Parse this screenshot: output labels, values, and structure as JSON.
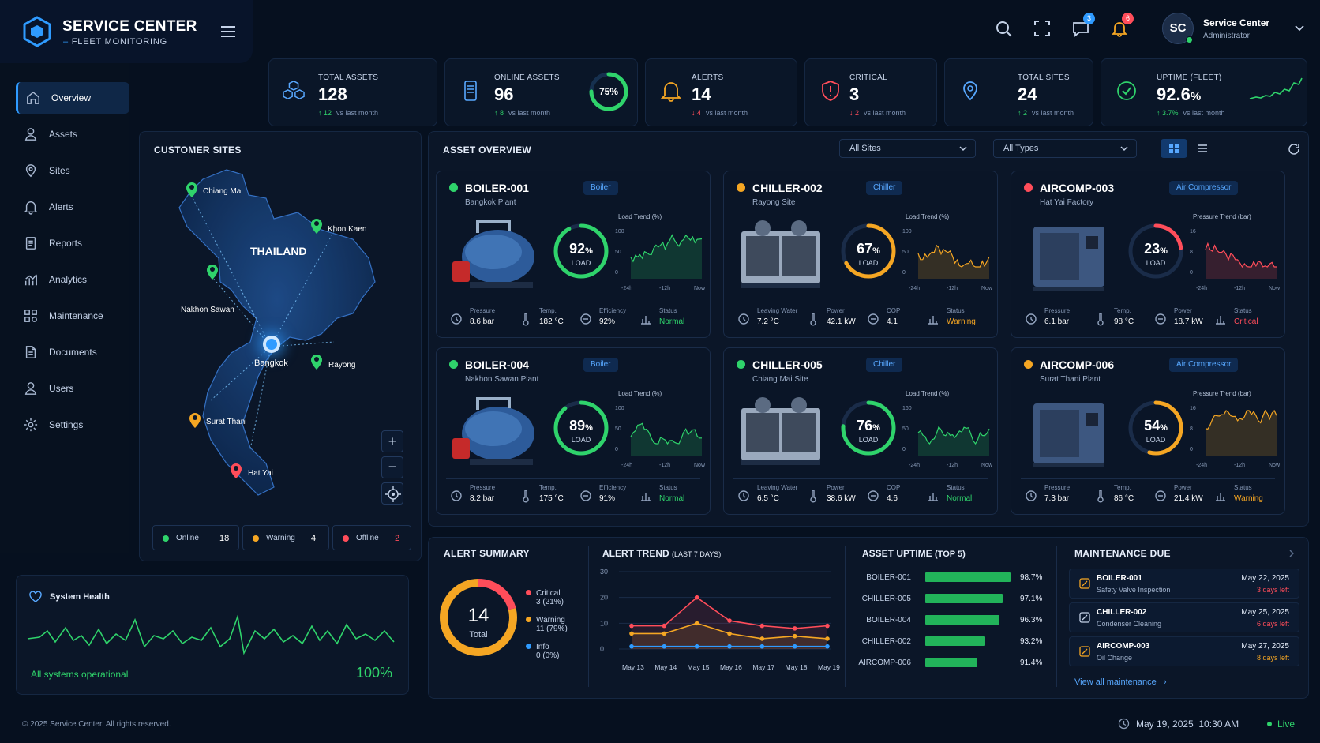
{
  "brand": {
    "title": "SERVICE CENTER",
    "subtitle": "FLEET MONITORING"
  },
  "header": {
    "chat_count": "3",
    "alert_count": "6",
    "user_initials": "SC",
    "user_name": "Service Center",
    "user_role": "Administrator"
  },
  "nav": [
    {
      "label": "Overview",
      "icon": "home-icon",
      "active": true
    },
    {
      "label": "Assets",
      "icon": "assets-icon"
    },
    {
      "label": "Sites",
      "icon": "location-icon"
    },
    {
      "label": "Alerts",
      "icon": "bell-icon"
    },
    {
      "label": "Reports",
      "icon": "report-icon"
    },
    {
      "label": "Analytics",
      "icon": "analytics-icon"
    },
    {
      "label": "Maintenance",
      "icon": "maintenance-icon"
    },
    {
      "label": "Documents",
      "icon": "document-icon"
    },
    {
      "label": "Users",
      "icon": "user-icon"
    },
    {
      "label": "Settings",
      "icon": "gear-icon"
    }
  ],
  "kpis": [
    {
      "label": "TOTAL ASSETS",
      "value": "128",
      "delta": "12",
      "suffix": "vs last month",
      "direction": "up"
    },
    {
      "label": "ONLINE ASSETS",
      "value": "96",
      "delta": "8",
      "suffix": "vs last month",
      "direction": "up",
      "ring": "75%",
      "ring_fraction": 0.75
    },
    {
      "label": "ALERTS",
      "value": "14",
      "delta": "4",
      "suffix": "vs last month",
      "direction": "down"
    },
    {
      "label": "CRITICAL",
      "value": "3",
      "delta": "2",
      "suffix": "vs last month",
      "direction": "down"
    },
    {
      "label": "TOTAL SITES",
      "value": "24",
      "delta": "2",
      "suffix": "vs last month",
      "direction": "up"
    },
    {
      "label": "UPTIME (FLEET)",
      "value": "92.6",
      "value_unit": "%",
      "delta": "3.7%",
      "suffix": "vs last month",
      "direction": "up"
    }
  ],
  "sites": {
    "title": "CUSTOMER SITES",
    "country": "THAILAND",
    "markers": [
      "Chiang Mai",
      "Khon Kaen",
      "Nakhon Sawan",
      "Bangkok",
      "Rayong",
      "Surat Thani",
      "Hat Yai"
    ],
    "legend": [
      {
        "label": "Online",
        "count": "18",
        "color": "#2fd36b"
      },
      {
        "label": "Warning",
        "count": "4",
        "color": "#f5a623"
      },
      {
        "label": "Offline",
        "count": "2",
        "color": "#ff4d5a"
      }
    ]
  },
  "asset_overview": {
    "title": "ASSET OVERVIEW",
    "filter_sites": "All Sites",
    "filter_types": "All Types",
    "assets": [
      {
        "name": "BOILER-001",
        "site": "Bangkok Plant",
        "type": "Boiler",
        "status_color": "#2fd36b",
        "load": "92",
        "load_fraction": 0.92,
        "trend_label": "Load Trend (%)",
        "y_ticks": [
          "100",
          "50",
          "0"
        ],
        "x_ticks": [
          "-24h",
          "-12h",
          "Now"
        ],
        "trend_color": "#2fd36b",
        "metrics": [
          {
            "label": "Pressure",
            "value": "8.6 bar"
          },
          {
            "label": "Temp.",
            "value": "182 °C"
          },
          {
            "label": "Efficiency",
            "value": "92%"
          },
          {
            "label": "Status",
            "value": "Normal"
          }
        ],
        "status_text_color": "#2fd36b"
      },
      {
        "name": "CHILLER-002",
        "site": "Rayong Site",
        "type": "Chiller",
        "status_color": "#f5a623",
        "load": "67",
        "load_fraction": 0.67,
        "trend_label": "Load Trend (%)",
        "y_ticks": [
          "100",
          "50",
          "0"
        ],
        "x_ticks": [
          "-24h",
          "-12h",
          "Now"
        ],
        "trend_color": "#f5a623",
        "metrics": [
          {
            "label": "Leaving Water",
            "value": "7.2 °C"
          },
          {
            "label": "Power",
            "value": "42.1 kW"
          },
          {
            "label": "COP",
            "value": "4.1"
          },
          {
            "label": "Status",
            "value": "Warning"
          }
        ],
        "status_text_color": "#f5a623"
      },
      {
        "name": "AIRCOMP-003",
        "site": "Hat Yai Factory",
        "type": "Air Compressor",
        "status_color": "#ff4d5a",
        "load": "23",
        "load_fraction": 0.23,
        "trend_label": "Pressure Trend (bar)",
        "y_ticks": [
          "16",
          "8",
          "0"
        ],
        "x_ticks": [
          "-24h",
          "-12h",
          "Now"
        ],
        "trend_color": "#ff4d5a",
        "metrics": [
          {
            "label": "Pressure",
            "value": "6.1 bar"
          },
          {
            "label": "Temp.",
            "value": "98 °C"
          },
          {
            "label": "Power",
            "value": "18.7 kW"
          },
          {
            "label": "Status",
            "value": "Critical"
          }
        ],
        "status_text_color": "#ff4d5a"
      },
      {
        "name": "BOILER-004",
        "site": "Nakhon Sawan Plant",
        "type": "Boiler",
        "status_color": "#2fd36b",
        "load": "89",
        "load_fraction": 0.89,
        "trend_label": "Load Trend (%)",
        "y_ticks": [
          "100",
          "50",
          "0"
        ],
        "x_ticks": [
          "-24h",
          "-12h",
          "Now"
        ],
        "trend_color": "#2fd36b",
        "metrics": [
          {
            "label": "Pressure",
            "value": "8.2 bar"
          },
          {
            "label": "Temp.",
            "value": "175 °C"
          },
          {
            "label": "Efficiency",
            "value": "91%"
          },
          {
            "label": "Status",
            "value": "Normal"
          }
        ],
        "status_text_color": "#2fd36b"
      },
      {
        "name": "CHILLER-005",
        "site": "Chiang Mai Site",
        "type": "Chiller",
        "status_color": "#2fd36b",
        "load": "76",
        "load_fraction": 0.76,
        "trend_label": "Load Trend (%)",
        "y_ticks": [
          "160",
          "50",
          "0"
        ],
        "x_ticks": [
          "-24h",
          "-12h",
          "Now"
        ],
        "trend_color": "#2fd36b",
        "metrics": [
          {
            "label": "Leaving Water",
            "value": "6.5 °C"
          },
          {
            "label": "Power",
            "value": "38.6 kW"
          },
          {
            "label": "COP",
            "value": "4.6"
          },
          {
            "label": "Status",
            "value": "Normal"
          }
        ],
        "status_text_color": "#2fd36b"
      },
      {
        "name": "AIRCOMP-006",
        "site": "Surat Thani Plant",
        "type": "Air Compressor",
        "status_color": "#f5a623",
        "load": "54",
        "load_fraction": 0.54,
        "trend_label": "Pressure Trend (bar)",
        "y_ticks": [
          "16",
          "8",
          "0"
        ],
        "x_ticks": [
          "-24h",
          "-12h",
          "Now"
        ],
        "trend_color": "#f5a623",
        "metrics": [
          {
            "label": "Pressure",
            "value": "7.3 bar"
          },
          {
            "label": "Temp.",
            "value": "86 °C"
          },
          {
            "label": "Power",
            "value": "21.4 kW"
          },
          {
            "label": "Status",
            "value": "Warning"
          }
        ],
        "status_text_color": "#f5a623"
      }
    ],
    "load_label": "LOAD"
  },
  "system_health": {
    "title": "System Health",
    "status": "All systems operational",
    "value": "100%"
  },
  "alert_summary": {
    "title": "ALERT SUMMARY",
    "total": "14",
    "total_label": "Total",
    "items": [
      {
        "label": "Critical",
        "detail": "3 (21%)",
        "color": "#ff4d5a",
        "fraction": 0.21
      },
      {
        "label": "Warning",
        "detail": "11 (79%)",
        "color": "#f5a623",
        "fraction": 0.79
      },
      {
        "label": "Info",
        "detail": "0 (0%)",
        "color": "#2f9bff",
        "fraction": 0
      }
    ]
  },
  "alert_trend": {
    "title": "ALERT TREND",
    "title_suffix": "(LAST 7 DAYS)"
  },
  "asset_uptime": {
    "title": "ASSET UPTIME",
    "title_suffix": "(TOP 5)"
  },
  "maintenance": {
    "title": "MAINTENANCE DUE",
    "items": [
      {
        "asset": "BOILER-001",
        "task": "Safety Valve Inspection",
        "date": "May 22, 2025",
        "left": "3 days left",
        "left_color": "#ff4d5a"
      },
      {
        "asset": "CHILLER-002",
        "task": "Condenser Cleaning",
        "date": "May 25, 2025",
        "left": "6 days left",
        "left_color": "#ff4d5a"
      },
      {
        "asset": "AIRCOMP-003",
        "task": "Oil Change",
        "date": "May 27, 2025",
        "left": "8 days left",
        "left_color": "#f5a623"
      }
    ],
    "view_all": "View all maintenance"
  },
  "footer": {
    "copyright": "© 2025 Service Center. All rights reserved.",
    "datetime": "May 19, 2025  10:30 AM",
    "live": "Live"
  },
  "chart_data": [
    {
      "type": "line",
      "x": [
        "May 13",
        "May 14",
        "May 15",
        "May 16",
        "May 17",
        "May 18",
        "May 19"
      ],
      "series": [
        {
          "values": [
            9,
            9,
            20,
            11,
            9,
            8,
            9
          ],
          "color": "#ff4d5a"
        },
        {
          "values": [
            6,
            6,
            10,
            6,
            4,
            5,
            4
          ],
          "color": "#f5a623"
        },
        {
          "values": [
            1,
            1,
            1,
            1,
            1,
            1,
            1
          ],
          "color": "#2f9bff"
        }
      ],
      "ylim": [
        0,
        30
      ],
      "yticks": [
        "30",
        "20",
        "10",
        "0"
      ]
    },
    {
      "type": "bar",
      "categories": [
        "BOILER-001",
        "CHILLER-005",
        "BOILER-004",
        "CHILLER-002",
        "AIRCOMP-006"
      ],
      "values": [
        98.7,
        97.1,
        96.3,
        93.2,
        91.4
      ],
      "labels": [
        "98.7%",
        "97.1%",
        "96.3%",
        "93.2%",
        "91.4%"
      ],
      "orientation": "horizontal"
    }
  ]
}
